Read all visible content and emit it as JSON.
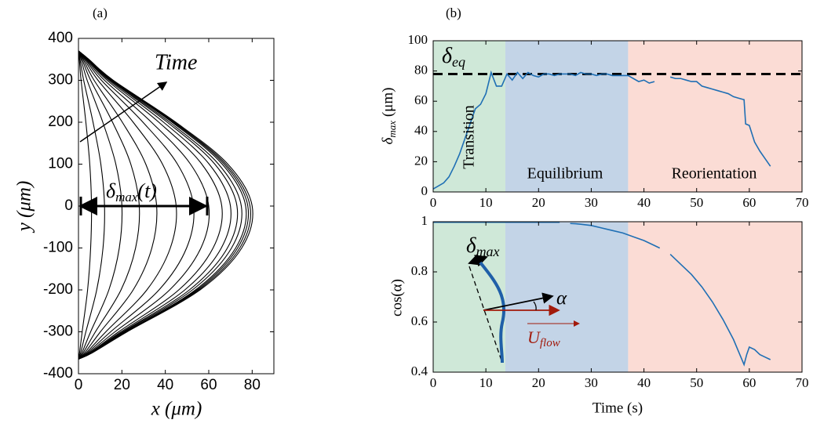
{
  "chart_data": [
    {
      "type": "line",
      "panel_label": "(a)",
      "xlabel": "x (μm)",
      "ylabel": "y (μm)",
      "xlim": [
        0,
        90
      ],
      "xticks": [
        0,
        20,
        40,
        60,
        80
      ],
      "ylim": [
        -400,
        400
      ],
      "yticks": [
        -400,
        -300,
        -200,
        -100,
        0,
        100,
        200,
        300,
        400
      ],
      "annotations": [
        {
          "text": "Time"
        },
        {
          "text": "δ",
          "subscript": "max",
          "suffix": "(t)"
        }
      ],
      "y": [
        370,
        350,
        300,
        200,
        100,
        0,
        -100,
        -200,
        -300,
        -350,
        -365
      ],
      "series": [
        {
          "color": "#000000",
          "x": [
            0,
            0.4,
            1.2,
            3.4,
            5.2,
            6,
            5.6,
            4.2,
            1.7,
            0.5,
            0
          ]
        },
        {
          "color": "#000000",
          "x": [
            0,
            0.7,
            2.4,
            6.7,
            10.3,
            12,
            11.3,
            8.4,
            3.4,
            1,
            0
          ]
        },
        {
          "color": "#000000",
          "x": [
            0,
            1.2,
            4,
            11.2,
            17.2,
            20,
            18.8,
            14,
            5.6,
            1.6,
            0
          ]
        },
        {
          "color": "#000000",
          "x": [
            0,
            1.7,
            5.6,
            15.7,
            24.1,
            28,
            26.3,
            19.6,
            7.8,
            2.2,
            0
          ]
        },
        {
          "color": "#000000",
          "x": [
            0,
            2.2,
            7.2,
            20.2,
            31,
            36,
            33.8,
            25.2,
            10.1,
            2.9,
            0
          ]
        },
        {
          "color": "#000000",
          "x": [
            0,
            2.7,
            9,
            25.2,
            38.7,
            45,
            42.3,
            31.5,
            12.6,
            3.6,
            0
          ]
        },
        {
          "color": "#000000",
          "x": [
            0,
            3.2,
            10.6,
            29.7,
            45.6,
            53,
            49.8,
            37.1,
            14.8,
            4.2,
            0
          ]
        },
        {
          "color": "#000000",
          "x": [
            0,
            3.6,
            12,
            33.6,
            51.6,
            60,
            56.4,
            42,
            16.8,
            4.8,
            0
          ]
        },
        {
          "color": "#000000",
          "x": [
            0,
            4,
            13.2,
            37,
            56.8,
            66,
            62,
            46.2,
            18.5,
            5.3,
            0
          ]
        },
        {
          "color": "#000000",
          "x": [
            0,
            4.2,
            14,
            39.2,
            60.2,
            70,
            65.8,
            49,
            19.6,
            5.6,
            0
          ]
        },
        {
          "color": "#000000",
          "x": [
            0,
            4.4,
            14.6,
            40.9,
            62.8,
            73,
            68.6,
            51.1,
            20.4,
            5.8,
            0
          ]
        },
        {
          "color": "#000000",
          "x": [
            0,
            4.5,
            15,
            42,
            64.5,
            75,
            70.5,
            52.5,
            21,
            6,
            0
          ]
        },
        {
          "color": "#000000",
          "x": [
            0,
            4.6,
            15.4,
            43.1,
            66.2,
            77,
            72.4,
            53.9,
            21.6,
            6.2,
            0
          ]
        },
        {
          "color": "#000000",
          "x": [
            0,
            4.7,
            15.6,
            43.7,
            67.1,
            78,
            73.3,
            54.6,
            21.8,
            6.2,
            0
          ]
        },
        {
          "color": "#000000",
          "x": [
            0,
            4.7,
            15.8,
            44.2,
            67.9,
            79,
            74.3,
            55.3,
            22.1,
            6.3,
            0
          ]
        },
        {
          "color": "#000000",
          "x": [
            0,
            4.8,
            16,
            44.8,
            68.8,
            80,
            75.2,
            56,
            22.4,
            6.4,
            0
          ]
        }
      ]
    },
    {
      "type": "line",
      "panel_label": "(b)",
      "ylabel": {
        "text": "δ",
        "subscript": "max",
        "suffix": " (μm)"
      },
      "xlim": [
        0,
        70
      ],
      "xticks": [
        0,
        10,
        20,
        30,
        40,
        50,
        60,
        70
      ],
      "ylim": [
        0,
        100
      ],
      "yticks": [
        0,
        20,
        40,
        60,
        80,
        100
      ],
      "regions": [
        {
          "label": "Transition",
          "start": 0,
          "end": 13.7,
          "color": "#cfe8d8"
        },
        {
          "label": "Equilibrium",
          "start": 13.7,
          "end": 37,
          "color": "#c3d4e7"
        },
        {
          "label": "Reorientation",
          "start": 37,
          "end": 70,
          "color": "#fbdcd5"
        }
      ],
      "reference_line": {
        "value": 78,
        "label": {
          "text": "δ",
          "subscript": "eq"
        }
      },
      "x": [
        0,
        1,
        2,
        3,
        4,
        5,
        6,
        7,
        8,
        9,
        10,
        11,
        12,
        13,
        14,
        15,
        16,
        17,
        18,
        19,
        20,
        21,
        22,
        23,
        24,
        25,
        26,
        27,
        28,
        29,
        30,
        31,
        32,
        33,
        34,
        35,
        36,
        37,
        38,
        39,
        40,
        41,
        42,
        43,
        44,
        45,
        46,
        47,
        48,
        49,
        50,
        51,
        52,
        53,
        54,
        55,
        56,
        57,
        58,
        59,
        59.3,
        60,
        61,
        62,
        63,
        64
      ],
      "series": [
        {
          "color": "#1f6fb4",
          "values": [
            2,
            4,
            6,
            10,
            17,
            25,
            35,
            45,
            55,
            58,
            65,
            79,
            70,
            70,
            78,
            74,
            79,
            75,
            79,
            77,
            76,
            78,
            78,
            77,
            78,
            78,
            78,
            77,
            79,
            78,
            78,
            77,
            78,
            78,
            77,
            77,
            77,
            77,
            75,
            73,
            74,
            72,
            73,
            null,
            null,
            76,
            75,
            75,
            74,
            73,
            73,
            70,
            69,
            68,
            67,
            66,
            65,
            63,
            62,
            61,
            45,
            44,
            33,
            27,
            22,
            17
          ]
        }
      ]
    },
    {
      "type": "line",
      "xlabel": "Time (s)",
      "ylabel": "cos(α)",
      "xlim": [
        0,
        70
      ],
      "xticks": [
        0,
        10,
        20,
        30,
        40,
        50,
        60,
        70
      ],
      "ylim": [
        0.4,
        1
      ],
      "yticks": [
        0.4,
        0.6,
        0.8,
        1
      ],
      "regions": [
        {
          "start": 0,
          "end": 13.7,
          "color": "#cfe8d8"
        },
        {
          "start": 13.7,
          "end": 37,
          "color": "#c3d4e7"
        },
        {
          "start": 37,
          "end": 70,
          "color": "#fbdcd5"
        }
      ],
      "annotations": [
        {
          "text": "δ",
          "subscript": "max"
        },
        {
          "text": "α"
        },
        {
          "text": "U",
          "subscript": "flow"
        }
      ],
      "x": [
        0,
        2,
        4,
        6,
        8,
        10,
        12,
        14,
        16,
        18,
        20,
        22,
        24,
        25,
        26,
        27,
        28,
        30,
        32,
        34,
        36,
        38,
        40,
        42,
        43,
        44,
        45,
        47,
        49,
        51,
        53,
        55,
        57,
        58,
        59,
        59.5,
        60,
        61,
        62,
        63,
        64
      ],
      "series": [
        {
          "color": "#1f6fb4",
          "values": [
            0.998,
            0.998,
            0.998,
            0.998,
            0.998,
            0.998,
            0.998,
            0.998,
            0.998,
            0.998,
            0.998,
            0.998,
            0.998,
            null,
            0.993,
            0.992,
            0.99,
            0.985,
            0.975,
            0.965,
            0.955,
            0.94,
            0.925,
            0.905,
            0.895,
            null,
            0.87,
            0.83,
            0.79,
            0.74,
            0.68,
            0.61,
            0.53,
            0.48,
            0.43,
            0.47,
            0.5,
            0.49,
            0.47,
            0.46,
            0.45
          ]
        }
      ]
    }
  ]
}
